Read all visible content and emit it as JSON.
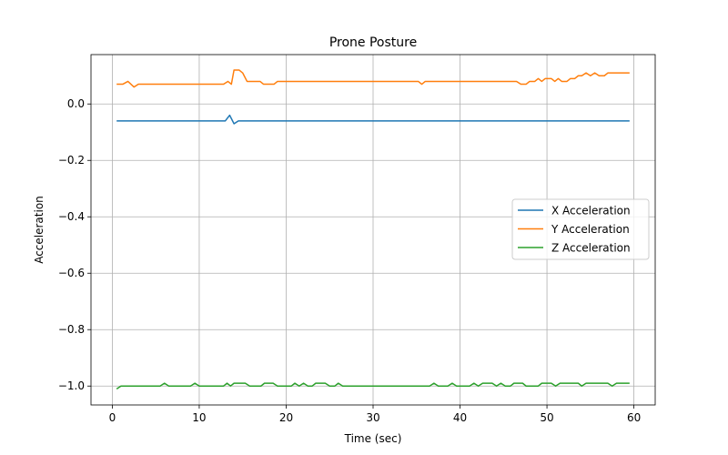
{
  "chart_data": {
    "type": "line",
    "title": "Prone Posture",
    "xlabel": "Time (sec)",
    "ylabel": "Acceleration",
    "xlim": [
      -2.45,
      62.45
    ],
    "ylim": [
      -1.067,
      0.175
    ],
    "xticks": [
      0,
      10,
      20,
      30,
      40,
      50,
      60
    ],
    "yticks": [
      -1.0,
      -0.8,
      -0.6,
      -0.4,
      -0.2,
      0.0
    ],
    "xtick_labels": [
      "0",
      "10",
      "20",
      "30",
      "40",
      "50",
      "60"
    ],
    "ytick_labels": [
      "−1.0",
      "−0.8",
      "−0.6",
      "−0.4",
      "−0.2",
      "0.0"
    ],
    "grid": true,
    "legend_position": "center-right",
    "series": [
      {
        "name": "X Acceleration",
        "color": "#1f77b4",
        "points": [
          [
            0.5,
            -0.06
          ],
          [
            13,
            -0.06
          ],
          [
            13.5,
            -0.04
          ],
          [
            14,
            -0.07
          ],
          [
            14.5,
            -0.06
          ],
          [
            59.5,
            -0.06
          ]
        ]
      },
      {
        "name": "Y Acceleration",
        "color": "#ff7f0e",
        "points": [
          [
            0.5,
            0.07
          ],
          [
            1.2,
            0.07
          ],
          [
            1.8,
            0.08
          ],
          [
            2.5,
            0.06
          ],
          [
            3,
            0.07
          ],
          [
            12.8,
            0.07
          ],
          [
            13.3,
            0.08
          ],
          [
            13.7,
            0.07
          ],
          [
            14,
            0.12
          ],
          [
            14.6,
            0.12
          ],
          [
            15,
            0.11
          ],
          [
            15.5,
            0.08
          ],
          [
            17,
            0.08
          ],
          [
            17.4,
            0.07
          ],
          [
            18.6,
            0.07
          ],
          [
            19,
            0.08
          ],
          [
            35.2,
            0.08
          ],
          [
            35.6,
            0.07
          ],
          [
            36,
            0.08
          ],
          [
            46.5,
            0.08
          ],
          [
            47,
            0.07
          ],
          [
            47.6,
            0.07
          ],
          [
            48,
            0.08
          ],
          [
            48.6,
            0.08
          ],
          [
            49,
            0.09
          ],
          [
            49.4,
            0.08
          ],
          [
            49.8,
            0.09
          ],
          [
            50.5,
            0.09
          ],
          [
            50.9,
            0.08
          ],
          [
            51.3,
            0.09
          ],
          [
            51.7,
            0.08
          ],
          [
            52.3,
            0.08
          ],
          [
            52.7,
            0.09
          ],
          [
            53.2,
            0.09
          ],
          [
            53.6,
            0.1
          ],
          [
            54,
            0.1
          ],
          [
            54.5,
            0.11
          ],
          [
            55,
            0.1
          ],
          [
            55.5,
            0.11
          ],
          [
            56,
            0.1
          ],
          [
            56.6,
            0.1
          ],
          [
            57,
            0.11
          ],
          [
            59.5,
            0.11
          ]
        ]
      },
      {
        "name": "Z Acceleration",
        "color": "#2ca02c",
        "points": [
          [
            0.5,
            -1.01
          ],
          [
            1,
            -1.0
          ],
          [
            5.5,
            -1.0
          ],
          [
            6,
            -0.99
          ],
          [
            6.5,
            -1.0
          ],
          [
            9,
            -1.0
          ],
          [
            9.5,
            -0.99
          ],
          [
            10,
            -1.0
          ],
          [
            12.8,
            -1.0
          ],
          [
            13.2,
            -0.99
          ],
          [
            13.6,
            -1.0
          ],
          [
            14,
            -0.99
          ],
          [
            15.3,
            -0.99
          ],
          [
            15.8,
            -1.0
          ],
          [
            17.1,
            -1.0
          ],
          [
            17.5,
            -0.99
          ],
          [
            18.5,
            -0.99
          ],
          [
            19,
            -1.0
          ],
          [
            20.6,
            -1.0
          ],
          [
            21,
            -0.99
          ],
          [
            21.5,
            -1.0
          ],
          [
            22,
            -0.99
          ],
          [
            22.5,
            -1.0
          ],
          [
            23,
            -1.0
          ],
          [
            23.4,
            -0.99
          ],
          [
            24.5,
            -0.99
          ],
          [
            25,
            -1.0
          ],
          [
            25.6,
            -1.0
          ],
          [
            26,
            -0.99
          ],
          [
            26.5,
            -1.0
          ],
          [
            36.5,
            -1.0
          ],
          [
            37,
            -0.99
          ],
          [
            37.5,
            -1.0
          ],
          [
            38.6,
            -1.0
          ],
          [
            39.1,
            -0.99
          ],
          [
            39.6,
            -1.0
          ],
          [
            41.1,
            -1.0
          ],
          [
            41.6,
            -0.99
          ],
          [
            42.1,
            -1.0
          ],
          [
            42.6,
            -0.99
          ],
          [
            43.7,
            -0.99
          ],
          [
            44.2,
            -1.0
          ],
          [
            44.7,
            -0.99
          ],
          [
            45.2,
            -1.0
          ],
          [
            45.8,
            -1.0
          ],
          [
            46.2,
            -0.99
          ],
          [
            47.2,
            -0.99
          ],
          [
            47.6,
            -1.0
          ],
          [
            49,
            -1.0
          ],
          [
            49.4,
            -0.99
          ],
          [
            50.5,
            -0.99
          ],
          [
            51,
            -1.0
          ],
          [
            51.5,
            -0.99
          ],
          [
            53.6,
            -0.99
          ],
          [
            54,
            -1.0
          ],
          [
            54.5,
            -0.99
          ],
          [
            57,
            -0.99
          ],
          [
            57.5,
            -1.0
          ],
          [
            58,
            -0.99
          ],
          [
            59.5,
            -0.99
          ]
        ]
      }
    ]
  }
}
